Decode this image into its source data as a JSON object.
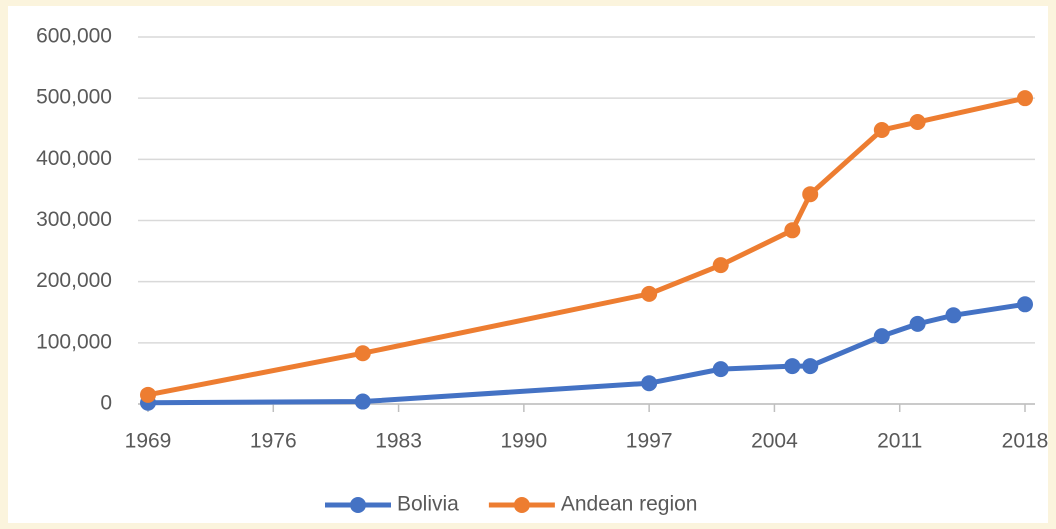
{
  "chart_data": {
    "type": "line",
    "series": [
      {
        "name": "Bolivia",
        "color": "#4472c4",
        "x": [
          1969,
          1981,
          1997,
          2001,
          2005,
          2006,
          2010,
          2012,
          2014,
          2018
        ],
        "values": [
          2000,
          4000,
          34000,
          57000,
          62000,
          62000,
          111000,
          131000,
          145000,
          163000
        ]
      },
      {
        "name": "Andean region",
        "color": "#ed7d31",
        "x": [
          1969,
          1981,
          1997,
          2001,
          2005,
          2006,
          2010,
          2012,
          2018
        ],
        "values": [
          15000,
          83000,
          180000,
          227000,
          284000,
          343000,
          448000,
          461000,
          500000
        ]
      }
    ],
    "xlim": [
      1969,
      2018
    ],
    "xticks": [
      1969,
      1976,
      1983,
      1990,
      1997,
      2004,
      2011,
      2018
    ],
    "ylim": [
      0,
      600000
    ],
    "yticks": [
      0,
      {
        "value": 100000,
        "label": "100,000"
      },
      {
        "value": 200000,
        "label": "200,000"
      },
      {
        "value": 300000,
        "label": "300,000"
      },
      {
        "value": 400000,
        "label": "400,000"
      },
      {
        "value": 500000,
        "label": "500,000"
      },
      {
        "value": 600000,
        "label": "600,000"
      }
    ],
    "grid": true,
    "legend": "bottom"
  }
}
